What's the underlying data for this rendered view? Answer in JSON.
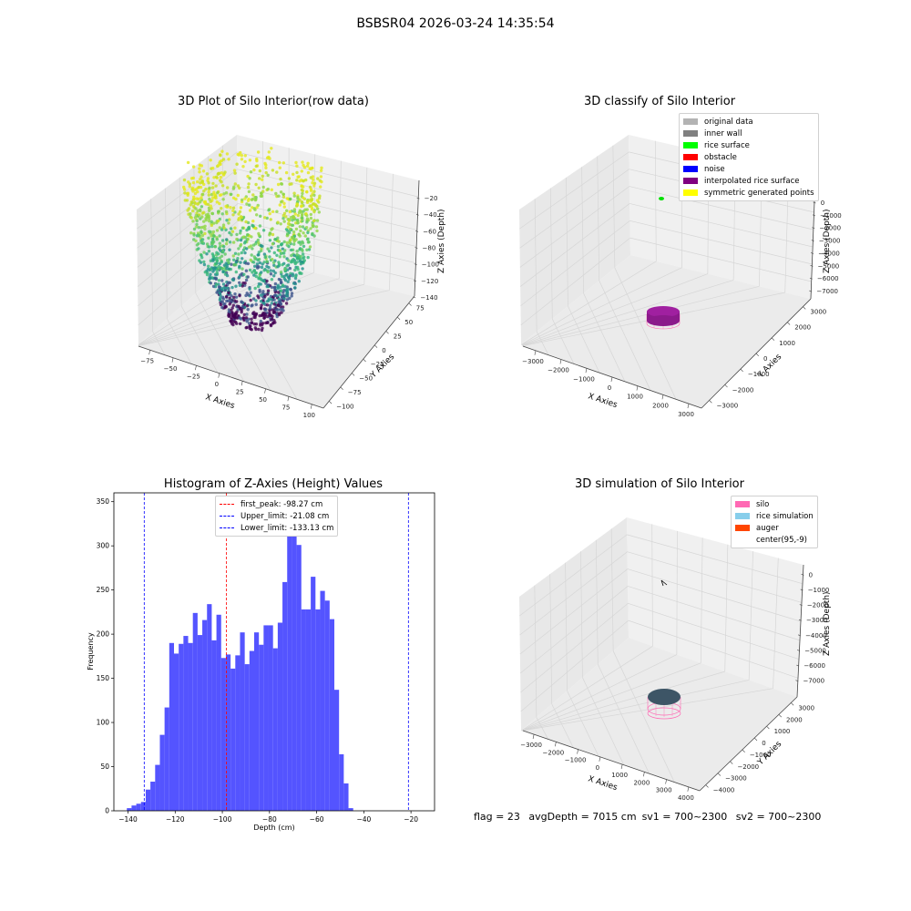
{
  "suptitle": "BSBSR04 2026-03-24 14:35:54",
  "footer": {
    "flag": "flag = 23",
    "avg": "avgDepth = 7015 cm",
    "sv1": "sv1 = 700~2300",
    "sv2": "sv2 = 700~2300"
  },
  "panels": {
    "raw": {
      "title": "3D Plot of Silo Interior(row data)",
      "xlabel": "X Axies",
      "ylabel": "Y Axies",
      "zlabel": "Z Axies (Depth)",
      "xticks": [
        "−75",
        "−50",
        "−25",
        "0",
        "25",
        "50",
        "75",
        "100"
      ],
      "yticks": [
        "−100",
        "−75",
        "−50",
        "−25",
        "0",
        "25",
        "50",
        "75"
      ],
      "zticks": [
        "−20",
        "−40",
        "−60",
        "−80",
        "−100",
        "−120",
        "−140"
      ]
    },
    "classify": {
      "title": "3D classify of Silo Interior",
      "xlabel": "X Axies",
      "ylabel": "Y Axies",
      "zlabel": "Z Axies (Depth)",
      "xticks": [
        "−3000",
        "−2000",
        "−1000",
        "0",
        "1000",
        "2000",
        "3000"
      ],
      "yticks": [
        "−3000",
        "−2000",
        "−1000",
        "0",
        "1000",
        "2000",
        "3000"
      ],
      "zticks": [
        "0",
        "−1000",
        "−2000",
        "−3000",
        "−4000",
        "−5000",
        "−6000",
        "−7000"
      ],
      "legend": [
        {
          "label": "original data",
          "color": "#b3b3b3"
        },
        {
          "label": "inner wall",
          "color": "#808080"
        },
        {
          "label": "rice surface",
          "color": "#00ff00"
        },
        {
          "label": "obstacle",
          "color": "#ff0000"
        },
        {
          "label": "noise",
          "color": "#0000ff"
        },
        {
          "label": "interpolated rice surface",
          "color": "#800080"
        },
        {
          "label": "symmetric generated points",
          "color": "#ffff00"
        }
      ]
    },
    "simulation": {
      "title": "3D simulation of Silo Interior",
      "xlabel": "X Axies",
      "ylabel": "Y Axies",
      "zlabel": "Z Axies (Depth)",
      "xticks": [
        "−3000",
        "−2000",
        "−1000",
        "0",
        "1000",
        "2000",
        "3000",
        "4000"
      ],
      "yticks": [
        "−4000",
        "−3000",
        "−2000",
        "−1000",
        "0",
        "1000",
        "2000",
        "3000"
      ],
      "zticks": [
        "0",
        "−1000",
        "−2000",
        "−3000",
        "−4000",
        "−5000",
        "−6000",
        "−7000"
      ],
      "legend": [
        {
          "label": "silo",
          "color": "#ff69b4"
        },
        {
          "label": "rice simulation",
          "color": "#87ceeb"
        },
        {
          "label": "auger",
          "color": "#ff4500"
        },
        {
          "label": "center(95,-9)",
          "color": ""
        }
      ]
    }
  },
  "chart_data": {
    "type": "bar",
    "title": "Histogram of Z-Axies (Height) Values",
    "xlabel": "Depth (cm)",
    "ylabel": "Frequency",
    "xlim": [
      -146,
      -10
    ],
    "ylim": [
      0,
      360
    ],
    "xticks": [
      -140,
      -120,
      -100,
      -80,
      -60,
      -40,
      -20
    ],
    "yticks": [
      0,
      50,
      100,
      150,
      200,
      250,
      300,
      350
    ],
    "bar_color": "#4b4bff",
    "bin_start": -140.5,
    "bin_width": 2,
    "values": [
      3,
      6,
      8,
      10,
      24,
      33,
      52,
      86,
      117,
      190,
      178,
      189,
      198,
      190,
      224,
      199,
      216,
      234,
      193,
      222,
      173,
      177,
      161,
      176,
      202,
      166,
      181,
      202,
      188,
      210,
      210,
      184,
      213,
      259,
      325,
      341,
      301,
      228,
      228,
      265,
      228,
      249,
      238,
      217,
      137,
      64,
      31,
      3
    ],
    "lines": [
      {
        "label": "first_peak: -98.27 cm",
        "x": -98.27,
        "color": "#ff0000"
      },
      {
        "label": "Upper_limit: -21.08 cm",
        "x": -21.08,
        "color": "#0000ff"
      },
      {
        "label": "Lower_limit: -133.13 cm",
        "x": -133.13,
        "color": "#0000ff"
      }
    ]
  }
}
